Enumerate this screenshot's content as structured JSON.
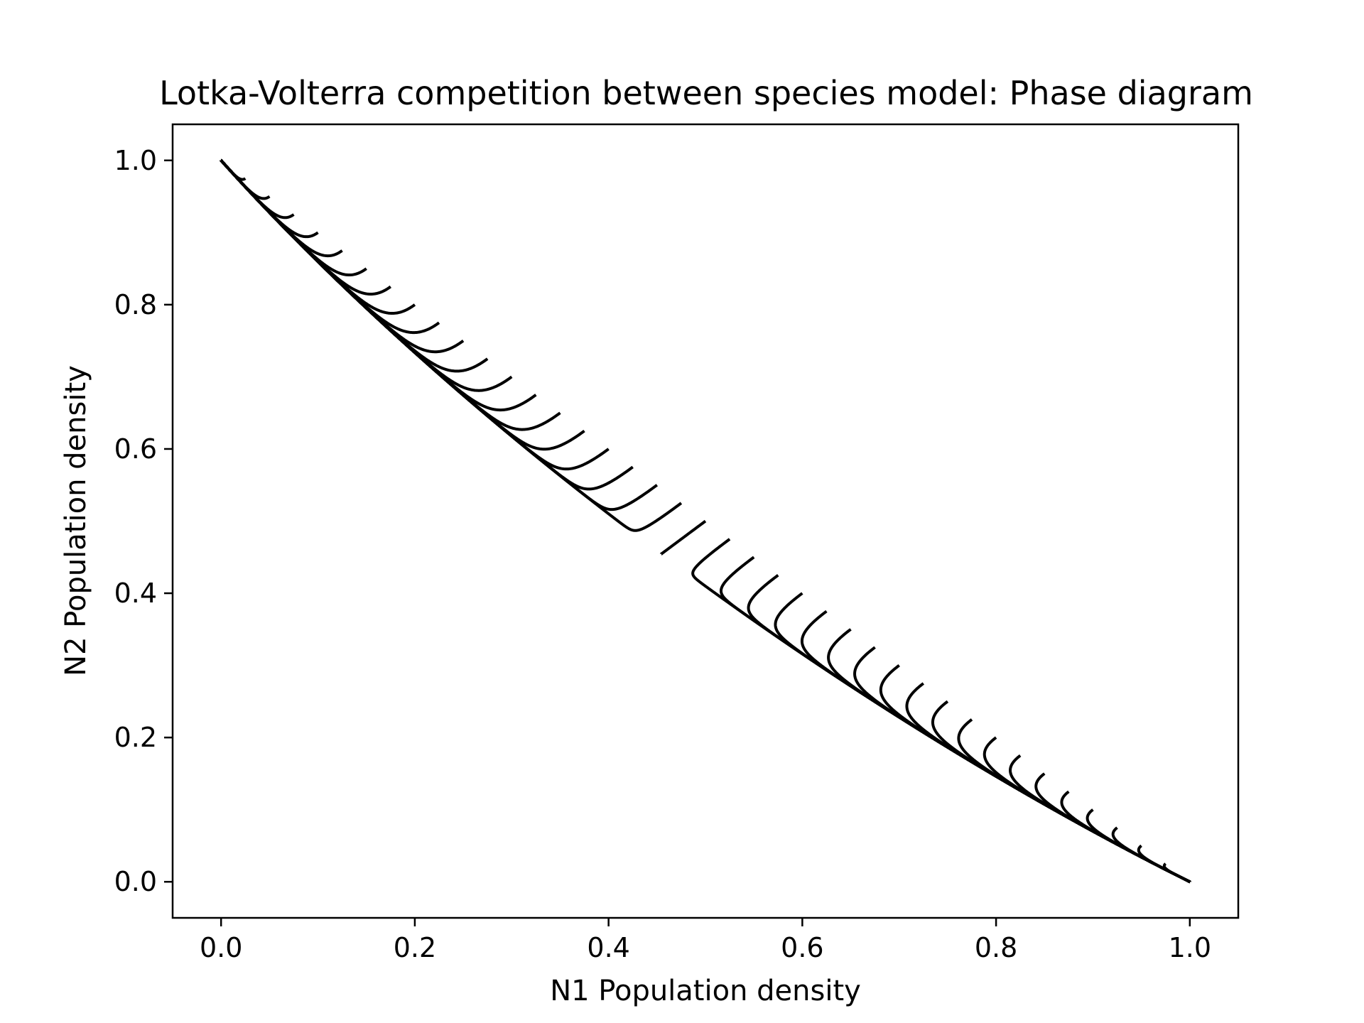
{
  "chart_data": {
    "type": "line",
    "title": "Lotka-Volterra competition between species model: Phase diagram",
    "xlabel": "N1 Population density",
    "ylabel": "N2 Population density",
    "xlim": [
      -0.05,
      1.05
    ],
    "ylim": [
      -0.05,
      1.05
    ],
    "xticks": [
      0.0,
      0.2,
      0.4,
      0.6,
      0.8,
      1.0
    ],
    "xtick_labels": [
      "0.0",
      "0.2",
      "0.4",
      "0.6",
      "0.8",
      "1.0"
    ],
    "yticks": [
      0.0,
      0.2,
      0.4,
      0.6,
      0.8,
      1.0
    ],
    "ytick_labels": [
      "0.0",
      "0.2",
      "0.4",
      "0.6",
      "0.8",
      "1.0"
    ],
    "grid": false,
    "line_color": "#000000",
    "model": {
      "r1": 1.0,
      "r2": 1.0,
      "alpha12": 1.2,
      "alpha21": 1.2,
      "K1": 1.0,
      "K2": 1.0
    },
    "initial_conditions": [
      [
        0.025,
        0.975
      ],
      [
        0.05,
        0.95
      ],
      [
        0.075,
        0.925
      ],
      [
        0.1,
        0.9
      ],
      [
        0.125,
        0.875
      ],
      [
        0.15,
        0.85
      ],
      [
        0.175,
        0.825
      ],
      [
        0.2,
        0.8
      ],
      [
        0.225,
        0.775
      ],
      [
        0.25,
        0.75
      ],
      [
        0.275,
        0.725
      ],
      [
        0.3,
        0.7
      ],
      [
        0.325,
        0.675
      ],
      [
        0.35,
        0.65
      ],
      [
        0.375,
        0.625
      ],
      [
        0.4,
        0.6
      ],
      [
        0.425,
        0.575
      ],
      [
        0.45,
        0.55
      ],
      [
        0.475,
        0.525
      ],
      [
        0.5,
        0.5
      ],
      [
        0.525,
        0.475
      ],
      [
        0.55,
        0.45
      ],
      [
        0.575,
        0.425
      ],
      [
        0.6,
        0.4
      ],
      [
        0.625,
        0.375
      ],
      [
        0.65,
        0.35
      ],
      [
        0.675,
        0.325
      ],
      [
        0.7,
        0.3
      ],
      [
        0.725,
        0.275
      ],
      [
        0.75,
        0.25
      ],
      [
        0.775,
        0.225
      ],
      [
        0.8,
        0.2
      ],
      [
        0.825,
        0.175
      ],
      [
        0.85,
        0.15
      ],
      [
        0.875,
        0.125
      ],
      [
        0.9,
        0.1
      ],
      [
        0.925,
        0.075
      ],
      [
        0.95,
        0.05
      ],
      [
        0.975,
        0.025
      ]
    ],
    "equilibria": [
      [
        0.0,
        1.0
      ],
      [
        1.0,
        0.0
      ]
    ]
  }
}
